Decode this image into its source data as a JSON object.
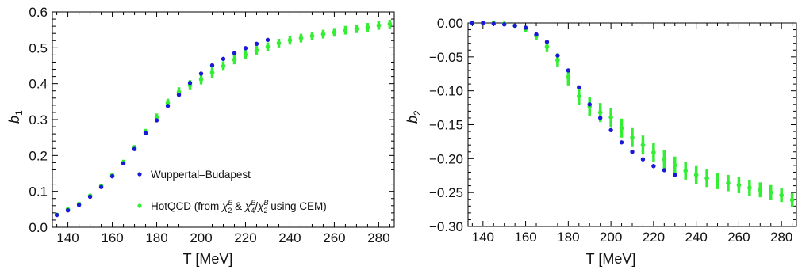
{
  "colors": {
    "wb": "#1a1ad6",
    "hot": "#33ee33",
    "frame": "#000000"
  },
  "chart_data": [
    {
      "type": "scatter",
      "xlabel": "T [MeV]",
      "ylabel": "b",
      "ylabel_sub": "1",
      "xlim": [
        133,
        287
      ],
      "ylim": [
        0,
        0.6
      ],
      "xticks": [
        140,
        160,
        180,
        200,
        220,
        240,
        260,
        280
      ],
      "yticks": [
        0.0,
        0.1,
        0.2,
        0.3,
        0.4,
        0.5,
        0.6
      ],
      "ytick_labels": [
        "0.0",
        "0.1",
        "0.2",
        "0.3",
        "0.4",
        "0.5",
        "0.6"
      ],
      "legend": {
        "placement": "bottom-right",
        "wb": "Wuppertal–Budapest",
        "hot_prefix": "HotQCD (from ",
        "chi": "χ",
        "sub2": "2",
        "sub4": "4",
        "supB": "B",
        "amp": " & ",
        "slash": "/",
        "hot_suffix": " using CEM)"
      },
      "series": [
        {
          "name": "Wuppertal–Budapest",
          "x": [
            135,
            140,
            145,
            150,
            155,
            160,
            165,
            170,
            175,
            180,
            185,
            190,
            195,
            200,
            205,
            210,
            215,
            220,
            225,
            230
          ],
          "y": [
            0.034,
            0.047,
            0.062,
            0.085,
            0.112,
            0.142,
            0.178,
            0.218,
            0.262,
            0.298,
            0.338,
            0.369,
            0.402,
            0.428,
            0.451,
            0.469,
            0.485,
            0.499,
            0.511,
            0.522
          ]
        },
        {
          "name": "HotQCD",
          "x": [
            135,
            140,
            145,
            150,
            155,
            160,
            165,
            170,
            175,
            180,
            185,
            190,
            195,
            200,
            205,
            210,
            215,
            220,
            225,
            230,
            235,
            240,
            245,
            250,
            255,
            260,
            265,
            270,
            275,
            280,
            285
          ],
          "y": [
            0.035,
            0.05,
            0.065,
            0.088,
            0.115,
            0.145,
            0.181,
            0.221,
            0.265,
            0.307,
            0.346,
            0.377,
            0.396,
            0.412,
            0.431,
            0.449,
            0.467,
            0.481,
            0.493,
            0.503,
            0.513,
            0.521,
            0.527,
            0.533,
            0.538,
            0.543,
            0.549,
            0.553,
            0.557,
            0.562,
            0.566
          ],
          "err": [
            0.003,
            0.003,
            0.004,
            0.004,
            0.005,
            0.006,
            0.007,
            0.008,
            0.009,
            0.01,
            0.012,
            0.013,
            0.014,
            0.014,
            0.014,
            0.013,
            0.013,
            0.012,
            0.012,
            0.012,
            0.012,
            0.012,
            0.012,
            0.012,
            0.012,
            0.012,
            0.012,
            0.012,
            0.012,
            0.012,
            0.012
          ]
        }
      ]
    },
    {
      "type": "scatter",
      "xlabel": "T [MeV]",
      "ylabel": "b",
      "ylabel_sub": "2",
      "xlim": [
        133,
        287
      ],
      "ylim": [
        -0.3,
        0.0
      ],
      "xticks": [
        140,
        160,
        180,
        200,
        220,
        240,
        260,
        280
      ],
      "yticks": [
        0.0,
        -0.05,
        -0.1,
        -0.15,
        -0.2,
        -0.25,
        -0.3
      ],
      "ytick_labels": [
        "0.00",
        "−0.05",
        "−0.10",
        "−0.15",
        "−0.20",
        "−0.25",
        "−0.30"
      ],
      "series": [
        {
          "name": "Wuppertal–Budapest",
          "x": [
            135,
            140,
            145,
            150,
            155,
            160,
            165,
            170,
            175,
            180,
            185,
            190,
            195,
            200,
            205,
            210,
            215,
            220,
            225,
            230
          ],
          "y": [
            0.0,
            0.0,
            -0.001,
            -0.002,
            -0.004,
            -0.007,
            -0.017,
            -0.028,
            -0.048,
            -0.07,
            -0.095,
            -0.12,
            -0.14,
            -0.158,
            -0.176,
            -0.19,
            -0.201,
            -0.211,
            -0.217,
            -0.224
          ]
        },
        {
          "name": "HotQCD",
          "x": [
            135,
            140,
            145,
            150,
            155,
            160,
            165,
            170,
            175,
            180,
            185,
            190,
            195,
            200,
            205,
            210,
            215,
            220,
            225,
            230,
            235,
            240,
            245,
            250,
            255,
            260,
            265,
            270,
            275,
            280,
            285
          ],
          "y": [
            0.0,
            0.0,
            0.0,
            -0.001,
            -0.004,
            -0.009,
            -0.019,
            -0.035,
            -0.055,
            -0.08,
            -0.108,
            -0.123,
            -0.132,
            -0.139,
            -0.155,
            -0.169,
            -0.18,
            -0.191,
            -0.201,
            -0.21,
            -0.218,
            -0.224,
            -0.229,
            -0.233,
            -0.236,
            -0.239,
            -0.243,
            -0.246,
            -0.25,
            -0.254,
            -0.261
          ],
          "err": [
            0.001,
            0.001,
            0.001,
            0.002,
            0.003,
            0.005,
            0.006,
            0.008,
            0.01,
            0.012,
            0.013,
            0.014,
            0.014,
            0.014,
            0.014,
            0.014,
            0.014,
            0.014,
            0.014,
            0.013,
            0.013,
            0.013,
            0.013,
            0.012,
            0.012,
            0.012,
            0.012,
            0.011,
            0.011,
            0.01,
            0.01
          ]
        }
      ]
    }
  ]
}
